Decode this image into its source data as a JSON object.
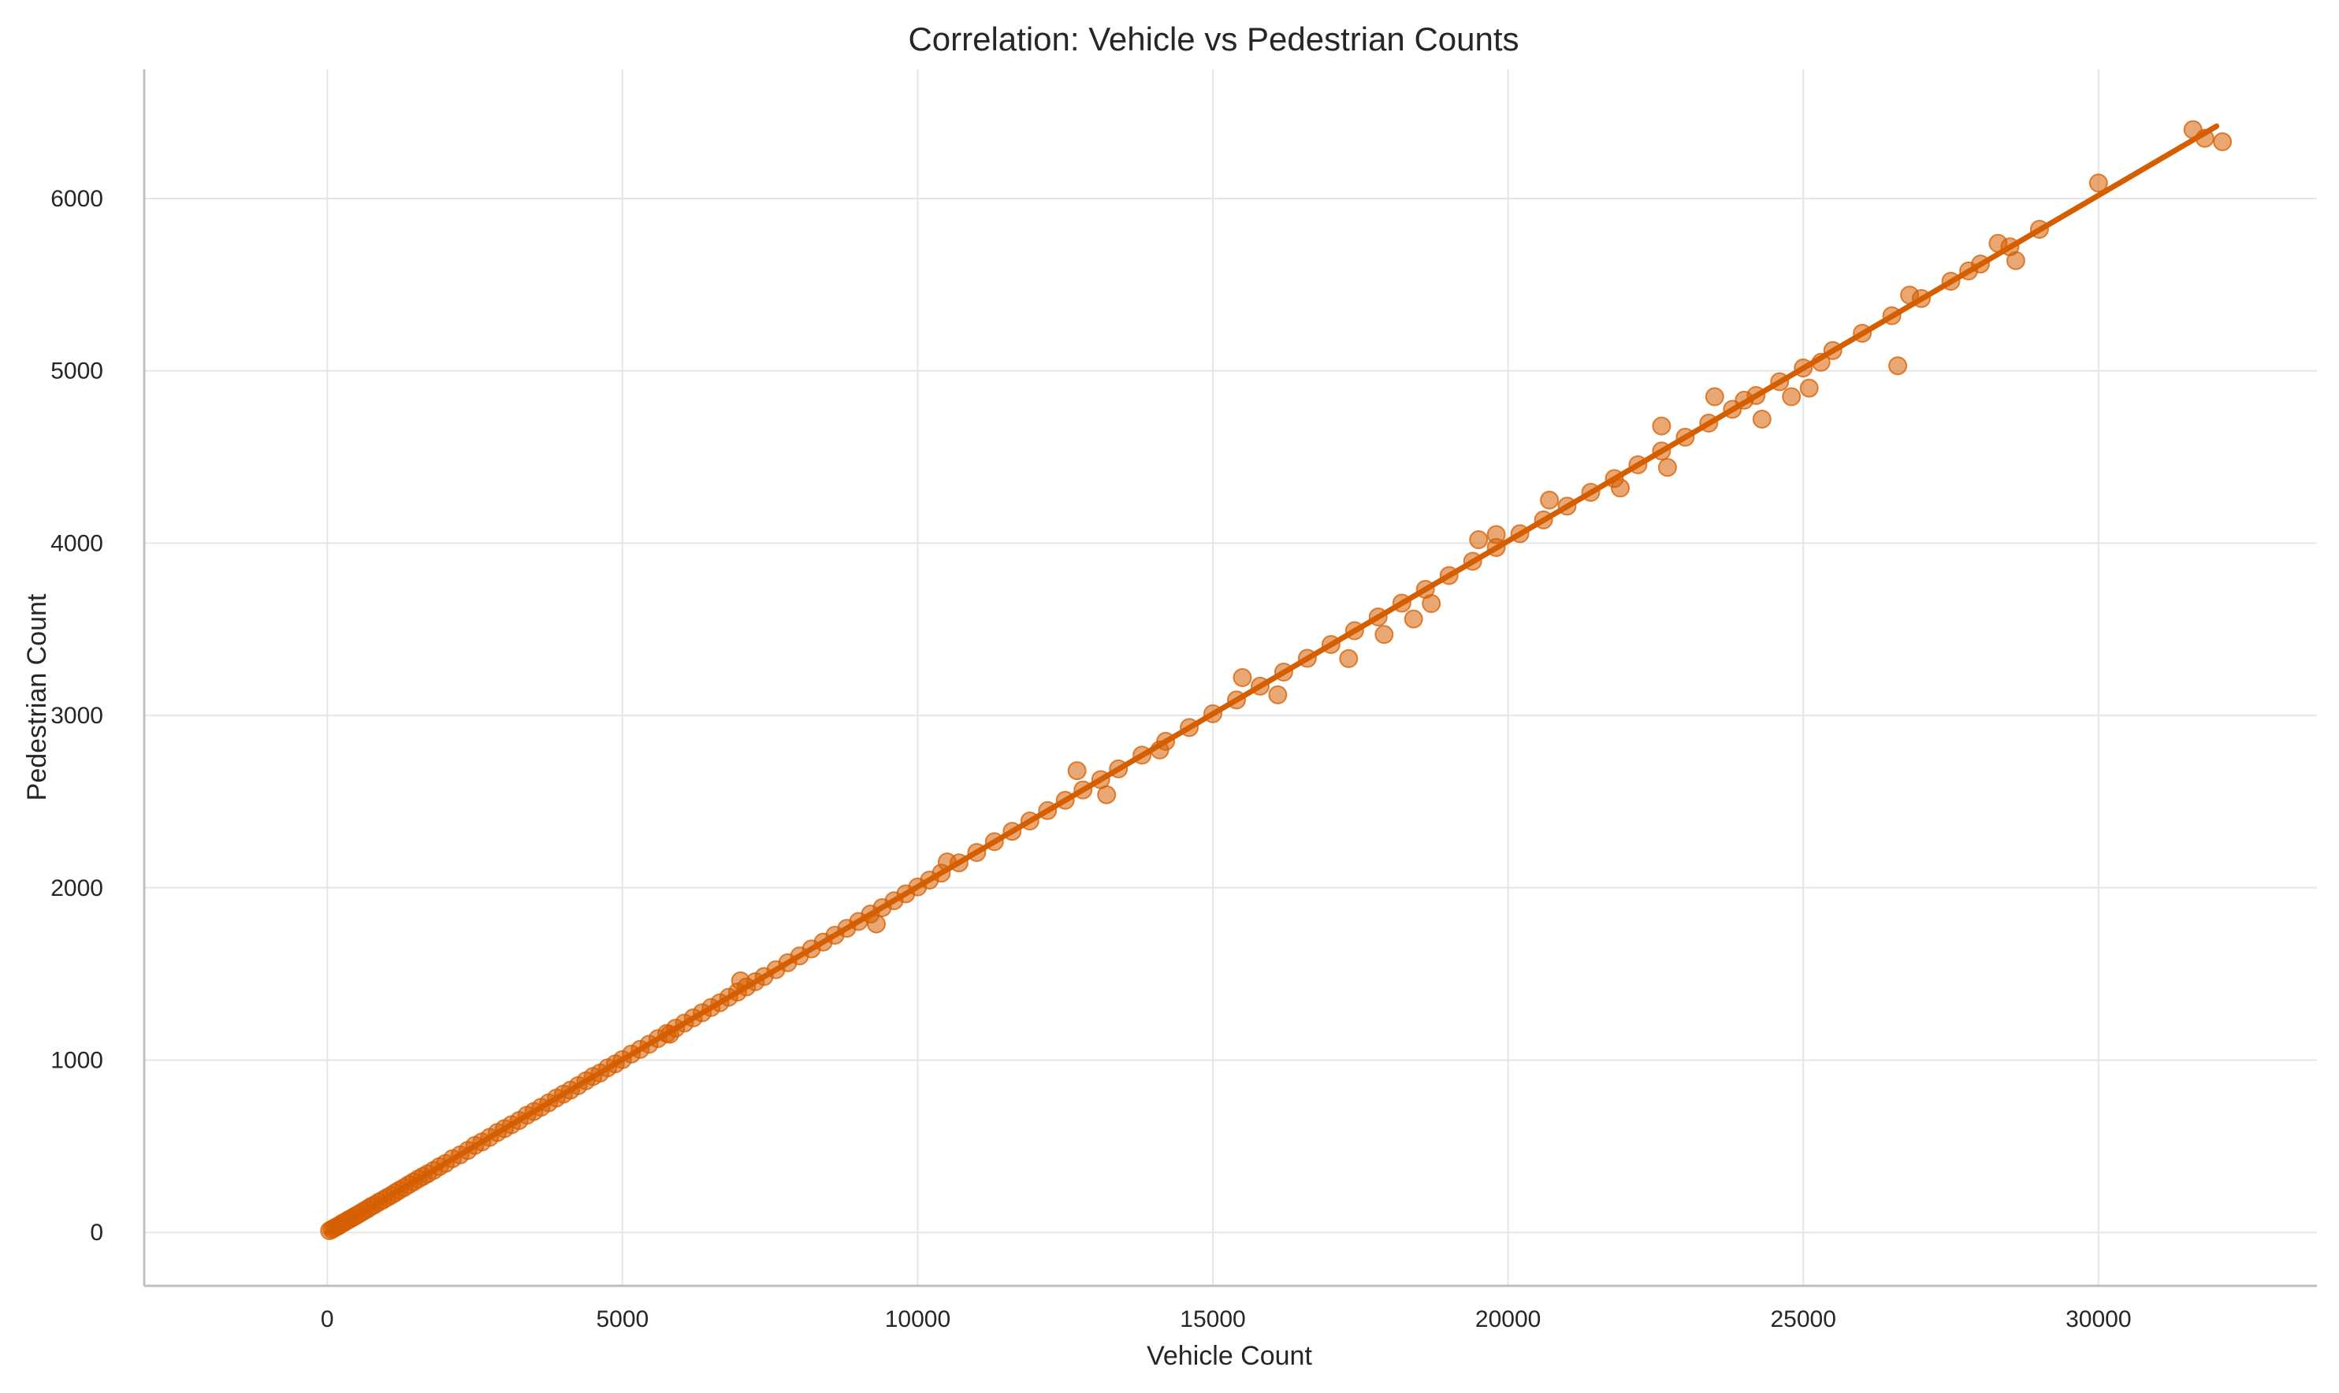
{
  "chart_data": {
    "type": "scatter",
    "title": "Correlation: Vehicle vs Pedestrian Counts",
    "xlabel": "Vehicle Count",
    "ylabel": "Pedestrian Count",
    "xlim": [
      -3100,
      33700
    ],
    "ylim": [
      -310,
      6750
    ],
    "xticks": [
      0,
      5000,
      10000,
      15000,
      20000,
      25000,
      30000
    ],
    "yticks": [
      0,
      1000,
      2000,
      3000,
      4000,
      5000,
      6000
    ],
    "grid": true,
    "colors": {
      "points": "#D55E00",
      "line": "#D55E00",
      "point_alpha": 0.55
    },
    "regression_line": {
      "x": [
        0,
        32000
      ],
      "y": [
        0,
        6420
      ]
    },
    "series": [
      {
        "points": [
          [
            40,
            10
          ],
          [
            80,
            18
          ],
          [
            120,
            25
          ],
          [
            160,
            33
          ],
          [
            200,
            40
          ],
          [
            250,
            52
          ],
          [
            300,
            60
          ],
          [
            350,
            72
          ],
          [
            400,
            80
          ],
          [
            450,
            90
          ],
          [
            500,
            100
          ],
          [
            560,
            112
          ],
          [
            620,
            125
          ],
          [
            680,
            136
          ],
          [
            740,
            150
          ],
          [
            800,
            160
          ],
          [
            870,
            175
          ],
          [
            940,
            188
          ],
          [
            1010,
            202
          ],
          [
            1080,
            215
          ],
          [
            1150,
            230
          ],
          [
            1220,
            245
          ],
          [
            1300,
            260
          ],
          [
            1380,
            277
          ],
          [
            1460,
            293
          ],
          [
            1540,
            310
          ],
          [
            1620,
            325
          ],
          [
            1700,
            340
          ],
          [
            1800,
            360
          ],
          [
            1900,
            382
          ],
          [
            2000,
            400
          ],
          [
            2120,
            428
          ],
          [
            2250,
            450
          ],
          [
            2380,
            476
          ],
          [
            2500,
            505
          ],
          [
            2620,
            525
          ],
          [
            2750,
            552
          ],
          [
            2880,
            580
          ],
          [
            3000,
            602
          ],
          [
            3120,
            625
          ],
          [
            3250,
            650
          ],
          [
            3380,
            680
          ],
          [
            3500,
            702
          ],
          [
            3620,
            726
          ],
          [
            3750,
            752
          ],
          [
            3880,
            780
          ],
          [
            4000,
            803
          ],
          [
            4120,
            826
          ],
          [
            4250,
            852
          ],
          [
            4380,
            880
          ],
          [
            4500,
            905
          ],
          [
            4620,
            925
          ],
          [
            4750,
            955
          ],
          [
            4880,
            978
          ],
          [
            5000,
            1003
          ],
          [
            5150,
            1035
          ],
          [
            5300,
            1062
          ],
          [
            5450,
            1092
          ],
          [
            5600,
            1125
          ],
          [
            5750,
            1155
          ],
          [
            5900,
            1185
          ],
          [
            6050,
            1215
          ],
          [
            6200,
            1245
          ],
          [
            6350,
            1275
          ],
          [
            6500,
            1305
          ],
          [
            6650,
            1333
          ],
          [
            6800,
            1365
          ],
          [
            6950,
            1395
          ],
          [
            7100,
            1425
          ],
          [
            7250,
            1455
          ],
          [
            7400,
            1485
          ],
          [
            7600,
            1525
          ],
          [
            7800,
            1565
          ],
          [
            8000,
            1605
          ],
          [
            8200,
            1645
          ],
          [
            8400,
            1685
          ],
          [
            8600,
            1725
          ],
          [
            8800,
            1765
          ],
          [
            9000,
            1805
          ],
          [
            9200,
            1848
          ],
          [
            9400,
            1885
          ],
          [
            9600,
            1925
          ],
          [
            9800,
            1965
          ],
          [
            10000,
            2005
          ],
          [
            10200,
            2045
          ],
          [
            10400,
            2085
          ],
          [
            10700,
            2145
          ],
          [
            11000,
            2205
          ],
          [
            11300,
            2268
          ],
          [
            11600,
            2328
          ],
          [
            11900,
            2388
          ],
          [
            12200,
            2448
          ],
          [
            12500,
            2508
          ],
          [
            12800,
            2568
          ],
          [
            13100,
            2628
          ],
          [
            13400,
            2690
          ],
          [
            13800,
            2770
          ],
          [
            14200,
            2850
          ],
          [
            14600,
            2930
          ],
          [
            15000,
            3010
          ],
          [
            15400,
            3090
          ],
          [
            15800,
            3170
          ],
          [
            16200,
            3252
          ],
          [
            16600,
            3332
          ],
          [
            17000,
            3412
          ],
          [
            17400,
            3492
          ],
          [
            17800,
            3572
          ],
          [
            18200,
            3652
          ],
          [
            18600,
            3732
          ],
          [
            19000,
            3812
          ],
          [
            19400,
            3895
          ],
          [
            19800,
            3975
          ],
          [
            20200,
            4055
          ],
          [
            20600,
            4135
          ],
          [
            21000,
            4215
          ],
          [
            21400,
            4295
          ],
          [
            21800,
            4375
          ],
          [
            22200,
            4455
          ],
          [
            22600,
            4535
          ],
          [
            23000,
            4615
          ],
          [
            23400,
            4697
          ],
          [
            23800,
            4777
          ],
          [
            24200,
            4857
          ],
          [
            24600,
            4937
          ],
          [
            25000,
            5017
          ],
          [
            25500,
            5118
          ],
          [
            26000,
            5218
          ],
          [
            26500,
            5320
          ],
          [
            27000,
            5420
          ],
          [
            27500,
            5520
          ],
          [
            28000,
            5620
          ],
          [
            28500,
            5720
          ],
          [
            29000,
            5822
          ],
          [
            30000,
            6090
          ],
          [
            31600,
            6400
          ],
          [
            31800,
            6350
          ],
          [
            32100,
            6330
          ],
          [
            12700,
            2680
          ],
          [
            13200,
            2540
          ],
          [
            15500,
            3220
          ],
          [
            16100,
            3120
          ],
          [
            17300,
            3330
          ],
          [
            18400,
            3560
          ],
          [
            18700,
            3650
          ],
          [
            19500,
            4020
          ],
          [
            20700,
            4250
          ],
          [
            22600,
            4680
          ],
          [
            22700,
            4440
          ],
          [
            23500,
            4850
          ],
          [
            24300,
            4720
          ],
          [
            24800,
            4850
          ],
          [
            25100,
            4900
          ],
          [
            26600,
            5030
          ],
          [
            26800,
            5440
          ],
          [
            28600,
            5640
          ],
          [
            21900,
            4320
          ],
          [
            9300,
            1790
          ],
          [
            5800,
            1150
          ],
          [
            7000,
            1460
          ],
          [
            10500,
            2150
          ],
          [
            14100,
            2800
          ],
          [
            17900,
            3470
          ],
          [
            19800,
            4050
          ],
          [
            24000,
            4830
          ],
          [
            25300,
            5050
          ],
          [
            27800,
            5580
          ],
          [
            28300,
            5740
          ]
        ]
      }
    ]
  }
}
